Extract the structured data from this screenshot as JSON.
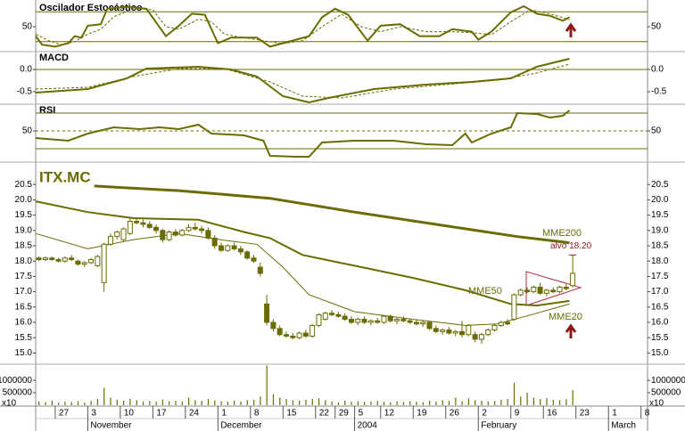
{
  "chart_data": [
    {
      "type": "line",
      "title": "Oscilador Estocástico",
      "ylim": [
        0,
        100
      ],
      "yticks": [
        50
      ],
      "ref_lines": [
        80,
        20
      ],
      "series": [
        {
          "color": "#6b6b00",
          "line_width": 2,
          "x": [
            0,
            1,
            3,
            5,
            6,
            7,
            8,
            10,
            11,
            14,
            17,
            20,
            22,
            24,
            26,
            28,
            30,
            34,
            36,
            38,
            42,
            44,
            46,
            48,
            51,
            53,
            56,
            59,
            62,
            64,
            67,
            68,
            70,
            73,
            75,
            77,
            79,
            81,
            82
          ],
          "values": [
            31,
            14,
            10,
            17,
            31,
            28,
            52,
            55,
            86,
            90,
            86,
            31,
            52,
            76,
            74,
            17,
            28,
            28,
            10,
            17,
            31,
            69,
            86,
            74,
            22,
            52,
            55,
            31,
            31,
            45,
            40,
            24,
            40,
            79,
            91,
            76,
            72,
            62,
            69
          ]
        },
        {
          "color": "#6b6b00",
          "line_width": 1,
          "dashed": true,
          "x": [
            0,
            2,
            4,
            6,
            8,
            10,
            12,
            15,
            18,
            20,
            22,
            25,
            27,
            29,
            32,
            35,
            38,
            41,
            44,
            47,
            50,
            53,
            56,
            60,
            64,
            67,
            70,
            73,
            76,
            79,
            82
          ],
          "values": [
            35,
            22,
            14,
            20,
            35,
            45,
            70,
            86,
            84,
            50,
            45,
            65,
            60,
            35,
            28,
            22,
            16,
            22,
            50,
            75,
            50,
            40,
            50,
            40,
            40,
            38,
            34,
            60,
            84,
            76,
            64
          ]
        }
      ]
    },
    {
      "type": "line",
      "title": "MACD",
      "ylim": [
        -0.8,
        0.4
      ],
      "yticks": [
        {
          "value": 0,
          "label": "0.0"
        },
        -0.5
      ],
      "ref_lines": [
        0
      ],
      "series": [
        {
          "color": "#6b6b00",
          "line_width": 2,
          "x": [
            0,
            8,
            14,
            17,
            25,
            30,
            34,
            38,
            42,
            45,
            52,
            60,
            67,
            73,
            77,
            82
          ],
          "values": [
            -0.52,
            -0.44,
            -0.2,
            0.02,
            0.06,
            0,
            -0.16,
            -0.6,
            -0.74,
            -0.64,
            -0.44,
            -0.34,
            -0.28,
            -0.2,
            0.06,
            0.24
          ]
        },
        {
          "color": "#6b6b00",
          "line_width": 1,
          "dashed": true,
          "x": [
            0,
            8,
            15,
            22,
            29,
            36,
            41,
            47,
            55,
            63,
            71,
            77,
            82
          ],
          "values": [
            -0.44,
            -0.4,
            -0.16,
            0.02,
            0.02,
            -0.28,
            -0.6,
            -0.64,
            -0.44,
            -0.34,
            -0.24,
            -0.08,
            0.12
          ]
        }
      ]
    },
    {
      "type": "line",
      "title": "RSI",
      "ylim": [
        20,
        80
      ],
      "yticks": [
        50
      ],
      "ref_lines": [
        70,
        30
      ],
      "dashed_ref_lines": [
        50
      ],
      "series": [
        {
          "color": "#6b6b00",
          "line_width": 2,
          "x": [
            0,
            5,
            8,
            12,
            16,
            19,
            22,
            25,
            27,
            32,
            35,
            36,
            40,
            42,
            44,
            49,
            55,
            60,
            64,
            66,
            67,
            70,
            73,
            74,
            77,
            79,
            81,
            82
          ],
          "values": [
            42,
            39,
            47,
            54,
            52,
            54,
            52,
            57,
            47,
            45,
            39,
            22,
            21,
            21,
            37,
            39,
            39,
            35,
            34,
            47,
            37,
            47,
            54,
            70,
            69,
            65,
            67,
            73
          ]
        }
      ]
    },
    {
      "type": "candlestick",
      "title": "ITX.MC",
      "ylim": [
        14.75,
        21.0
      ],
      "color": "#6b6b00",
      "yticks": [
        {
          "value": 15,
          "label": "15.0"
        },
        15.5,
        {
          "value": 16,
          "label": "16.0"
        },
        16.5,
        {
          "value": 17,
          "label": "17.0"
        },
        17.5,
        {
          "value": 18,
          "label": "18.0"
        },
        18.5,
        {
          "value": 19,
          "label": "19.0"
        },
        19.5,
        {
          "value": 20,
          "label": "20.0"
        },
        20.5
      ],
      "open": [
        18.1,
        18.05,
        18.1,
        18.05,
        18,
        18.1,
        18,
        17.9,
        17.95,
        17.85,
        17.3,
        18.55,
        18.8,
        18.7,
        18.9,
        19.3,
        19.25,
        19.2,
        19.1,
        19,
        18.7,
        18.95,
        18.85,
        19,
        19.1,
        19.05,
        19,
        18.75,
        18.5,
        18.35,
        18.5,
        18.4,
        18.3,
        18.1,
        17.8,
        16.6,
        16,
        15.8,
        15.6,
        15.55,
        15.5,
        15.65,
        15.55,
        15.9,
        16.1,
        16.3,
        16.25,
        16.2,
        16.1,
        16,
        16.1,
        16,
        16.05,
        16,
        16.2,
        16.05,
        16.1,
        16.05,
        16,
        15.95,
        16,
        15.8,
        15.7,
        15.75,
        15.65,
        15.7,
        15.6,
        15.6,
        15.45,
        15.6,
        15.75,
        15.9,
        16,
        16.1,
        16.9,
        17.05,
        17,
        17.15,
        16.95,
        17.05,
        17,
        17.15,
        17.2
      ],
      "high": [
        18.15,
        18.15,
        18.15,
        18.1,
        18.15,
        18.2,
        18.05,
        18,
        18.1,
        18.2,
        18.6,
        18.9,
        19,
        19.1,
        19.4,
        19.4,
        19.35,
        19.3,
        19.2,
        19.05,
        19,
        19.05,
        19.05,
        19.2,
        19.25,
        19.15,
        19.1,
        18.85,
        18.6,
        18.55,
        18.6,
        18.5,
        18.35,
        18.2,
        17.95,
        16.9,
        16.1,
        15.9,
        15.7,
        15.65,
        15.7,
        15.75,
        15.95,
        16.3,
        16.35,
        16.4,
        16.35,
        16.3,
        16.2,
        16.15,
        16.2,
        16.1,
        16.15,
        16.25,
        16.25,
        16.15,
        16.2,
        16.1,
        16.1,
        16.05,
        16.05,
        15.9,
        15.8,
        15.85,
        15.75,
        16.05,
        15.95,
        15.7,
        15.65,
        15.8,
        15.95,
        16.05,
        16.1,
        16.95,
        17.1,
        17.15,
        17.2,
        17.3,
        17.1,
        17.15,
        17.2,
        17.25,
        18.2
      ],
      "low": [
        18,
        18,
        18,
        17.95,
        17.95,
        18,
        17.85,
        17.8,
        17.9,
        17.8,
        17,
        18.5,
        18.7,
        18.65,
        18.85,
        19.2,
        19.1,
        19.05,
        18.9,
        18.6,
        18.65,
        18.8,
        18.8,
        18.95,
        19,
        18.9,
        18.7,
        18.4,
        18.3,
        18.3,
        18.35,
        18.2,
        18.05,
        17.95,
        17.5,
        15.9,
        15.7,
        15.55,
        15.5,
        15.45,
        15.45,
        15.5,
        15.5,
        15.85,
        16.05,
        16.2,
        16.15,
        16.05,
        15.95,
        15.9,
        15.95,
        15.9,
        15.95,
        15.95,
        16,
        15.95,
        16,
        15.95,
        15.9,
        15.85,
        15.75,
        15.65,
        15.6,
        15.6,
        15.55,
        15.5,
        15.55,
        15.35,
        15.3,
        15.55,
        15.7,
        15.85,
        15.9,
        16.05,
        16.85,
        16.95,
        16.95,
        16.9,
        16.85,
        16.95,
        16.95,
        17.05,
        17.15
      ],
      "close": [
        18.05,
        18.1,
        18.05,
        18,
        18.1,
        18.05,
        17.9,
        17.95,
        18.05,
        18.15,
        18.55,
        18.8,
        18.95,
        19.05,
        19.3,
        19.25,
        19.2,
        19.1,
        19,
        18.7,
        18.95,
        18.85,
        19,
        19.1,
        19.05,
        19,
        18.75,
        18.5,
        18.35,
        18.5,
        18.4,
        18.3,
        18.1,
        18,
        17.6,
        16,
        15.8,
        15.6,
        15.55,
        15.5,
        15.65,
        15.55,
        15.9,
        16.25,
        16.3,
        16.25,
        16.2,
        16.1,
        16,
        16.1,
        16,
        16.05,
        16,
        16.2,
        16.05,
        16.1,
        16.05,
        16,
        15.95,
        16,
        15.8,
        15.7,
        15.75,
        15.65,
        15.7,
        15.6,
        15.9,
        15.45,
        15.6,
        15.75,
        15.9,
        16,
        15.95,
        16.9,
        17.05,
        17,
        17.15,
        16.95,
        17.05,
        17,
        17.15,
        17.1,
        17.6
      ],
      "series": [
        {
          "name": "MME200",
          "color": "#6b6b00",
          "line_width": 3,
          "x": [
            9,
            22,
            36,
            49,
            63,
            74,
            82
          ],
          "values": [
            20.45,
            20.3,
            20.05,
            19.6,
            19.15,
            18.8,
            18.6
          ]
        },
        {
          "name": "MME50",
          "color": "#6b6b00",
          "line_width": 2,
          "x": [
            0,
            8,
            15,
            25,
            32,
            36,
            41,
            49,
            58,
            66,
            73,
            77,
            82
          ],
          "values": [
            19.95,
            19.6,
            19.4,
            19.35,
            18.95,
            18.75,
            18.2,
            17.85,
            17.45,
            17.05,
            16.6,
            16.55,
            16.7
          ]
        },
        {
          "name": "MME20",
          "color": "#6b6b00",
          "line_width": 1,
          "x": [
            0,
            8,
            15,
            22,
            30,
            34,
            38,
            42,
            49,
            58,
            66,
            71,
            77,
            82
          ],
          "values": [
            18.9,
            18.4,
            18.7,
            18.9,
            18.65,
            18.55,
            17.8,
            16.9,
            16.35,
            16.1,
            15.9,
            15.95,
            16.3,
            16.6
          ]
        }
      ],
      "annotation": {
        "text": "alvo 18.20",
        "value": 18.2,
        "color": "#8b1a1a"
      }
    },
    {
      "type": "bar",
      "ylim": [
        0,
        1650000
      ],
      "yticks": [
        1000000,
        500000
      ],
      "unit_note": "x10",
      "color": "#6b6b00",
      "values": [
        150000,
        120000,
        180000,
        100000,
        140000,
        130000,
        160000,
        110000,
        170000,
        250000,
        700000,
        300000,
        220000,
        180000,
        260000,
        200000,
        150000,
        170000,
        140000,
        230000,
        160000,
        180000,
        150000,
        300000,
        200000,
        170000,
        250000,
        190000,
        160000,
        140000,
        180000,
        150000,
        200000,
        220000,
        350000,
        1600000,
        450000,
        300000,
        250000,
        200000,
        180000,
        220000,
        260000,
        280000,
        200000,
        150000,
        120000,
        180000,
        140000,
        160000,
        130000,
        150000,
        170000,
        140000,
        120000,
        150000,
        130000,
        160000,
        140000,
        120000,
        180000,
        150000,
        200000,
        170000,
        300000,
        160000,
        280000,
        200000,
        180000,
        150000,
        170000,
        220000,
        250000,
        900000,
        350000,
        500000,
        300000,
        250000,
        280000,
        220000,
        200000,
        240000,
        600000
      ],
      "xlim": [
        0,
        94
      ],
      "xticks": [
        {
          "value": 3,
          "label": "27"
        },
        {
          "value": 8,
          "label": "3"
        },
        {
          "value": 13,
          "label": "10"
        },
        {
          "value": 18,
          "label": "17"
        },
        {
          "value": 23,
          "label": "24"
        },
        {
          "value": 28,
          "label": "1"
        },
        {
          "value": 33,
          "label": "8"
        },
        {
          "value": 38,
          "label": "15"
        },
        {
          "value": 43,
          "label": "22"
        },
        {
          "value": 46,
          "label": "29"
        },
        {
          "value": 49,
          "label": "5"
        },
        {
          "value": 53,
          "label": "12"
        },
        {
          "value": 58,
          "label": "19"
        },
        {
          "value": 63,
          "label": "26"
        },
        {
          "value": 68,
          "label": "2"
        },
        {
          "value": 73,
          "label": "9"
        },
        {
          "value": 78,
          "label": "16"
        },
        {
          "value": 83,
          "label": "23"
        },
        {
          "value": 88,
          "label": "1"
        },
        {
          "value": 93,
          "label": "8"
        }
      ],
      "month_ticks": [
        {
          "value": 8,
          "label": "November"
        },
        {
          "value": 28,
          "label": "December"
        },
        {
          "value": 49,
          "label": "2004"
        },
        {
          "value": 68,
          "label": "February"
        },
        {
          "value": 88,
          "label": "March"
        }
      ]
    }
  ]
}
